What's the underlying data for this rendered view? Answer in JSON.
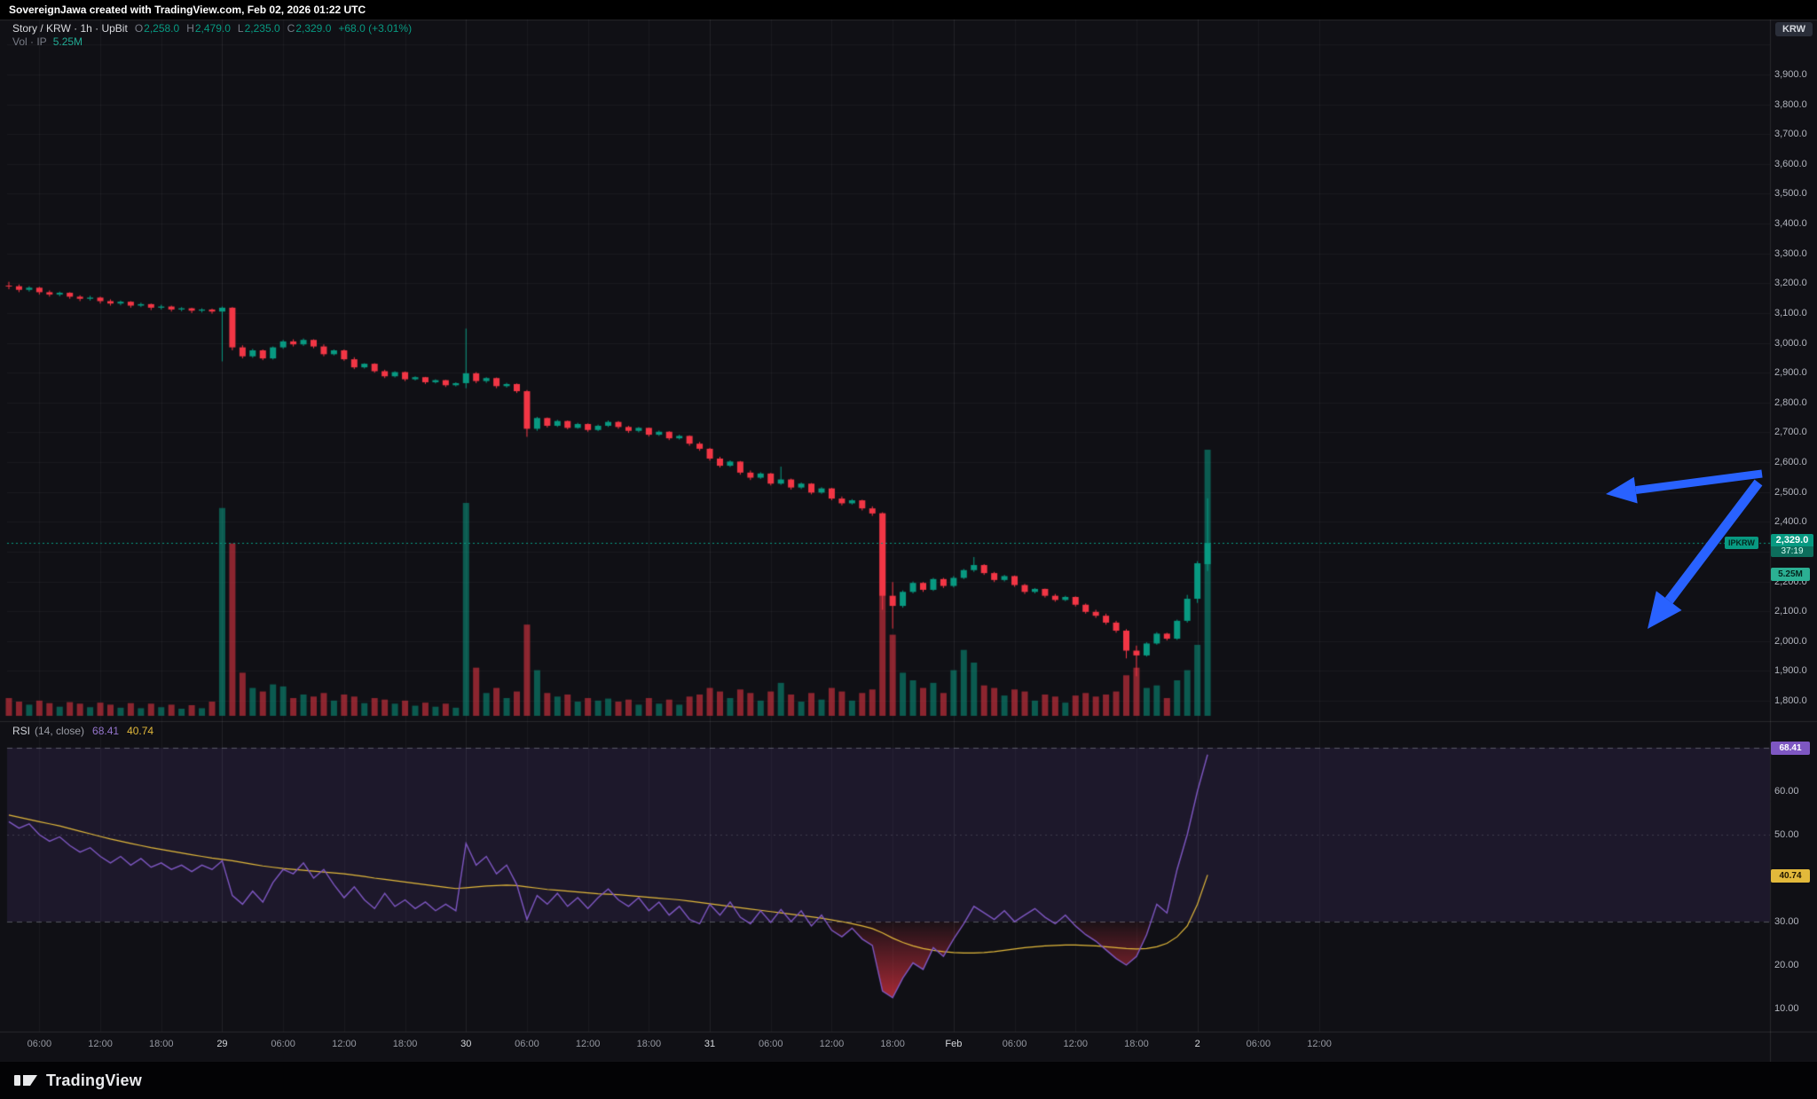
{
  "attribution": "SovereignJawa created with TradingView.com, Feb 02, 2026 01:22 UTC",
  "symbol_legend": {
    "title": "Story / KRW · 1h · UpBit",
    "open_label": "O",
    "open": "2,258.0",
    "high_label": "H",
    "high": "2,479.0",
    "low_label": "L",
    "low": "2,235.0",
    "close_label": "C",
    "close": "2,329.0",
    "change": "+68.0 (+3.01%)",
    "volume_label": "Vol · IP",
    "volume_value": "5.25M"
  },
  "rsi_legend": {
    "title": "RSI",
    "params": "(14, close)",
    "value": "68.41",
    "ma_value": "40.74"
  },
  "price_axis": {
    "currency_button": "KRW",
    "labels": [
      "3,900.0",
      "3,800.0",
      "3,700.0",
      "3,600.0",
      "3,500.0",
      "3,400.0",
      "3,300.0",
      "3,200.0",
      "3,100.0",
      "3,000.0",
      "2,900.0",
      "2,800.0",
      "2,700.0",
      "2,600.0",
      "2,500.0",
      "2,400.0",
      "2,300.0",
      "2,200.0",
      "2,100.0",
      "2,000.0",
      "1,900.0",
      "1,800.0"
    ],
    "last_price_badge": {
      "symbol_tag": "IPKRW",
      "price": "2,329.0",
      "countdown": "37:19"
    },
    "volume_badge": "5.25M"
  },
  "rsi_axis": {
    "labels": [
      "70.00",
      "60.00",
      "50.00",
      "40.00",
      "30.00",
      "20.00",
      "10.00"
    ],
    "value_badge": "68.41",
    "ma_badge": "40.74"
  },
  "time_axis": {
    "labels": [
      {
        "text": "06:00",
        "i": 3,
        "major": false
      },
      {
        "text": "12:00",
        "i": 9,
        "major": false
      },
      {
        "text": "18:00",
        "i": 15,
        "major": false
      },
      {
        "text": "29",
        "i": 21,
        "major": true
      },
      {
        "text": "06:00",
        "i": 27,
        "major": false
      },
      {
        "text": "12:00",
        "i": 33,
        "major": false
      },
      {
        "text": "18:00",
        "i": 39,
        "major": false
      },
      {
        "text": "30",
        "i": 45,
        "major": true
      },
      {
        "text": "06:00",
        "i": 51,
        "major": false
      },
      {
        "text": "12:00",
        "i": 57,
        "major": false
      },
      {
        "text": "18:00",
        "i": 63,
        "major": false
      },
      {
        "text": "31",
        "i": 69,
        "major": true
      },
      {
        "text": "06:00",
        "i": 75,
        "major": false
      },
      {
        "text": "12:00",
        "i": 81,
        "major": false
      },
      {
        "text": "18:00",
        "i": 87,
        "major": false
      },
      {
        "text": "Feb",
        "i": 93,
        "major": true
      },
      {
        "text": "06:00",
        "i": 99,
        "major": false
      },
      {
        "text": "12:00",
        "i": 105,
        "major": false
      },
      {
        "text": "18:00",
        "i": 111,
        "major": false
      },
      {
        "text": "2",
        "i": 117,
        "major": true
      },
      {
        "text": "06:00",
        "i": 123,
        "major": false
      },
      {
        "text": "12:00",
        "i": 129,
        "major": false
      }
    ]
  },
  "footer": {
    "brand": "TradingView"
  },
  "colors": {
    "up": "#089981",
    "down": "#f23645",
    "last_price_line": "#089981",
    "rsi": "#7e57c2",
    "rsi_ma": "#e2b93b",
    "arrow": "#2962ff",
    "axis_text": "#b2b5be",
    "badge_rsi": "#7e57c2",
    "badge_ma": "#e2b93b"
  },
  "chart_data": {
    "type": "candlestick",
    "symbol": "Story / KRW",
    "exchange": "UpBit",
    "interval": "1h",
    "x_start": "2026-01-28 03:00 UTC",
    "x_step_hours": 1,
    "visible_price_labels": [
      1800,
      3900
    ],
    "last": {
      "open": 2258.0,
      "high": 2479.0,
      "low": 2235.0,
      "close": 2329.0,
      "change": 68.0,
      "change_pct": 3.01,
      "volume": "5.25M",
      "countdown": "37:19"
    },
    "candles": {
      "open": [
        3192,
        3190,
        3178,
        3185,
        3170,
        3162,
        3168,
        3155,
        3148,
        3152,
        3140,
        3132,
        3138,
        3125,
        3130,
        3118,
        3122,
        3112,
        3116,
        3108,
        3112,
        3105,
        3118,
        2985,
        2955,
        2975,
        2948,
        2985,
        3005,
        2995,
        3010,
        2988,
        2962,
        2975,
        2945,
        2918,
        2930,
        2905,
        2888,
        2902,
        2878,
        2885,
        2868,
        2875,
        2858,
        2865,
        2898,
        2872,
        2882,
        2855,
        2862,
        2838,
        2712,
        2748,
        2722,
        2738,
        2715,
        2728,
        2708,
        2722,
        2735,
        2718,
        2705,
        2715,
        2692,
        2702,
        2680,
        2688,
        2662,
        2645,
        2612,
        2588,
        2602,
        2565,
        2548,
        2562,
        2528,
        2542,
        2515,
        2528,
        2498,
        2512,
        2478,
        2462,
        2472,
        2445,
        2428,
        2152,
        2118,
        2165,
        2195,
        2172,
        2208,
        2185,
        2212,
        2238,
        2255,
        2228,
        2205,
        2218,
        2188,
        2165,
        2175,
        2152,
        2138,
        2148,
        2122,
        2098,
        2085,
        2062,
        2035,
        1968,
        1952,
        1992,
        2025,
        2008,
        2068,
        2142,
        2258
      ],
      "high": [
        3205,
        3196,
        3190,
        3188,
        3176,
        3172,
        3170,
        3160,
        3158,
        3155,
        3146,
        3142,
        3140,
        3135,
        3132,
        3128,
        3125,
        3120,
        3118,
        3116,
        3115,
        3122,
        3120,
        2992,
        2980,
        2978,
        2988,
        3010,
        3012,
        3015,
        3012,
        2995,
        2978,
        2978,
        2952,
        2932,
        2932,
        2910,
        2905,
        2904,
        2888,
        2886,
        2878,
        2876,
        2868,
        3048,
        2902,
        2885,
        2884,
        2866,
        2864,
        2842,
        2752,
        2750,
        2742,
        2740,
        2732,
        2730,
        2726,
        2740,
        2738,
        2722,
        2718,
        2716,
        2706,
        2704,
        2692,
        2690,
        2668,
        2648,
        2618,
        2606,
        2604,
        2572,
        2566,
        2564,
        2585,
        2545,
        2532,
        2530,
        2516,
        2514,
        2485,
        2476,
        2474,
        2452,
        2432,
        2198,
        2170,
        2200,
        2198,
        2212,
        2212,
        2218,
        2242,
        2282,
        2258,
        2232,
        2222,
        2220,
        2192,
        2178,
        2176,
        2158,
        2152,
        2150,
        2126,
        2105,
        2092,
        2068,
        2040,
        1985,
        1996,
        2030,
        2028,
        2072,
        2155,
        2268,
        2479
      ],
      "low": [
        3180,
        3170,
        3172,
        3162,
        3155,
        3156,
        3148,
        3140,
        3142,
        3132,
        3125,
        3126,
        3118,
        3120,
        3110,
        3112,
        3105,
        3106,
        3100,
        3102,
        3098,
        2938,
        2975,
        2948,
        2950,
        2942,
        2944,
        2980,
        2988,
        2990,
        2982,
        2955,
        2958,
        2940,
        2912,
        2914,
        2900,
        2882,
        2884,
        2872,
        2874,
        2862,
        2864,
        2852,
        2854,
        2848,
        2865,
        2866,
        2848,
        2850,
        2832,
        2685,
        2705,
        2716,
        2718,
        2710,
        2712,
        2702,
        2704,
        2718,
        2712,
        2698,
        2700,
        2686,
        2688,
        2674,
        2676,
        2655,
        2638,
        2605,
        2582,
        2584,
        2558,
        2540,
        2544,
        2522,
        2524,
        2508,
        2510,
        2492,
        2494,
        2472,
        2455,
        2458,
        2438,
        2420,
        2105,
        2042,
        2112,
        2160,
        2165,
        2168,
        2178,
        2180,
        2208,
        2232,
        2222,
        2198,
        2200,
        2182,
        2158,
        2160,
        2146,
        2132,
        2134,
        2116,
        2092,
        2078,
        2055,
        2028,
        1942,
        1882,
        1948,
        1988,
        2002,
        2004,
        2062,
        2128,
        2235
      ],
      "close": [
        3190,
        3178,
        3185,
        3170,
        3162,
        3168,
        3155,
        3148,
        3152,
        3140,
        3132,
        3138,
        3125,
        3130,
        3118,
        3122,
        3112,
        3116,
        3108,
        3112,
        3105,
        3118,
        2985,
        2955,
        2975,
        2948,
        2985,
        3005,
        2995,
        3010,
        2988,
        2962,
        2975,
        2945,
        2918,
        2930,
        2905,
        2888,
        2902,
        2878,
        2885,
        2868,
        2875,
        2858,
        2865,
        2898,
        2872,
        2882,
        2855,
        2862,
        2838,
        2712,
        2748,
        2722,
        2738,
        2715,
        2728,
        2708,
        2722,
        2735,
        2718,
        2705,
        2715,
        2692,
        2702,
        2680,
        2688,
        2662,
        2645,
        2612,
        2588,
        2602,
        2565,
        2548,
        2562,
        2528,
        2542,
        2515,
        2528,
        2498,
        2512,
        2478,
        2462,
        2472,
        2445,
        2428,
        2152,
        2118,
        2165,
        2195,
        2172,
        2208,
        2185,
        2212,
        2238,
        2255,
        2228,
        2205,
        2218,
        2188,
        2165,
        2175,
        2152,
        2138,
        2148,
        2122,
        2098,
        2085,
        2062,
        2035,
        1968,
        1952,
        1992,
        2025,
        2008,
        2068,
        2142,
        2261,
        2329
      ],
      "volume_m": [
        0.35,
        0.28,
        0.22,
        0.3,
        0.25,
        0.18,
        0.27,
        0.24,
        0.17,
        0.26,
        0.22,
        0.16,
        0.25,
        0.15,
        0.24,
        0.17,
        0.22,
        0.14,
        0.21,
        0.15,
        0.28,
        4.1,
        3.4,
        0.85,
        0.55,
        0.48,
        0.62,
        0.58,
        0.35,
        0.42,
        0.38,
        0.45,
        0.3,
        0.42,
        0.38,
        0.25,
        0.35,
        0.32,
        0.24,
        0.3,
        0.2,
        0.26,
        0.18,
        0.24,
        0.16,
        4.2,
        0.95,
        0.45,
        0.55,
        0.35,
        0.48,
        1.8,
        0.9,
        0.45,
        0.38,
        0.42,
        0.28,
        0.35,
        0.3,
        0.34,
        0.28,
        0.32,
        0.22,
        0.35,
        0.24,
        0.32,
        0.22,
        0.38,
        0.42,
        0.55,
        0.48,
        0.35,
        0.52,
        0.45,
        0.3,
        0.48,
        0.65,
        0.42,
        0.28,
        0.45,
        0.32,
        0.55,
        0.48,
        0.3,
        0.45,
        0.52,
        4.0,
        1.6,
        0.85,
        0.7,
        0.55,
        0.65,
        0.45,
        0.9,
        1.3,
        1.05,
        0.6,
        0.55,
        0.4,
        0.52,
        0.48,
        0.3,
        0.42,
        0.38,
        0.26,
        0.4,
        0.45,
        0.38,
        0.42,
        0.48,
        0.8,
        0.95,
        0.55,
        0.6,
        0.35,
        0.7,
        0.9,
        1.4,
        5.25
      ]
    },
    "indicators": {
      "rsi_levels": [
        70,
        50,
        30
      ],
      "rsi_last": 68.41,
      "rsi_ma_last": 40.74,
      "rsi_14": [
        53,
        51.5,
        52.5,
        50,
        48.5,
        49.5,
        47.5,
        46,
        47,
        45,
        43.5,
        45,
        43,
        44.5,
        42.5,
        43.5,
        42,
        43,
        41.5,
        43,
        42,
        44,
        36,
        34,
        37,
        34.5,
        39,
        42,
        41,
        43.5,
        40,
        42,
        38.5,
        35.5,
        38,
        35,
        33,
        36.5,
        33.5,
        35,
        33,
        34.5,
        32.5,
        34,
        32.5,
        48,
        43,
        45,
        41,
        43,
        38.5,
        30.5,
        36,
        34,
        36.5,
        33.5,
        35.5,
        33,
        35.5,
        37.5,
        35,
        33.5,
        35.5,
        32.5,
        34.5,
        31.5,
        33.5,
        30.5,
        29.5,
        34,
        31.5,
        34.5,
        31,
        29.5,
        32.5,
        29.8,
        32.8,
        30,
        32.5,
        29,
        31.5,
        28,
        26.5,
        28.5,
        26,
        24.5,
        14,
        12.5,
        17,
        20.5,
        19,
        24,
        22,
        26,
        29.5,
        33.5,
        32,
        30.5,
        32.5,
        30,
        31.5,
        33,
        31,
        29.5,
        31.5,
        29,
        27,
        25.5,
        23.5,
        21.5,
        20,
        22,
        27,
        34,
        32,
        42,
        50,
        60,
        68.41
      ],
      "rsi_ma_14": [
        54.5,
        54,
        53.5,
        53,
        52.5,
        52,
        51.4,
        50.8,
        50.2,
        49.6,
        49,
        48.5,
        48,
        47.5,
        47,
        46.6,
        46.2,
        45.8,
        45.4,
        45,
        44.6,
        44.3,
        44,
        43.6,
        43.2,
        42.8,
        42.5,
        42.2,
        42,
        41.8,
        41.6,
        41.4,
        41.2,
        41,
        40.7,
        40.4,
        40,
        39.7,
        39.4,
        39.1,
        38.8,
        38.5,
        38.2,
        37.9,
        37.6,
        37.8,
        38,
        38.2,
        38.3,
        38.4,
        38.3,
        38,
        37.7,
        37.4,
        37.2,
        37,
        36.8,
        36.6,
        36.4,
        36.3,
        36.2,
        36,
        35.8,
        35.6,
        35.4,
        35.2,
        35,
        34.7,
        34.4,
        34.1,
        33.8,
        33.5,
        33.2,
        32.9,
        32.6,
        32.3,
        32,
        31.7,
        31.4,
        31.1,
        30.8,
        30.4,
        30,
        29.5,
        29,
        28.4,
        27.4,
        26.2,
        25.2,
        24.4,
        23.8,
        23.4,
        23.1,
        22.9,
        22.8,
        22.8,
        22.9,
        23.1,
        23.4,
        23.7,
        24,
        24.2,
        24.4,
        24.5,
        24.6,
        24.6,
        24.5,
        24.4,
        24.2,
        24,
        23.8,
        23.7,
        23.8,
        24.2,
        25,
        26.5,
        29,
        34,
        40.74
      ]
    },
    "annotations": [
      {
        "type": "arrow",
        "color": "#2962ff",
        "from": [
          1986,
          534
        ],
        "to": [
          1810,
          557
        ],
        "shaft_width": 9,
        "head_len": 34,
        "head_width": 30
      },
      {
        "type": "arrow",
        "color": "#2962ff",
        "from": [
          1982,
          544
        ],
        "to": [
          1857,
          709
        ],
        "shaft_width": 11,
        "head_len": 40,
        "head_width": 36
      }
    ]
  }
}
